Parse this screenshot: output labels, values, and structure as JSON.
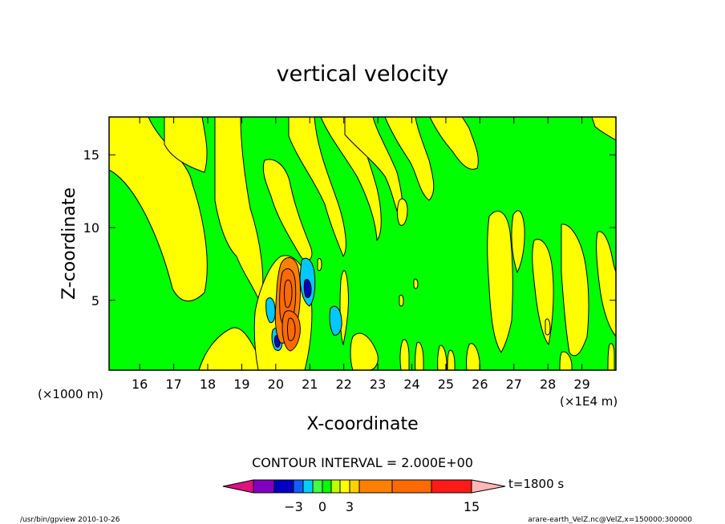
{
  "chart_data": {
    "type": "heatmap",
    "title": "vertical velocity",
    "xlabel": "X-coordinate",
    "ylabel": "Z-coordinate",
    "x_unit_left": "(×1000 m)",
    "x_unit_right": "(×1E4 m)",
    "x_ticks": [
      16,
      17,
      18,
      19,
      20,
      21,
      22,
      23,
      24,
      25,
      26,
      27,
      28,
      29
    ],
    "y_ticks": [
      5,
      10,
      15
    ],
    "xlim": [
      15.1,
      30
    ],
    "ylim": [
      0.2,
      17.6
    ],
    "contour_interval_text": "CONTOUR INTERVAL = 2.000E+00",
    "time_label": "t=1800 s",
    "colorbar": {
      "colors": [
        "#e0107f",
        "#7f00bf",
        "#0000c0",
        "#1060ff",
        "#00d0ff",
        "#40ff40",
        "#00ff00",
        "#c0ff00",
        "#ffff00",
        "#ffd000",
        "#ff8000",
        "#ff6a00",
        "#ff1a1a",
        "#ff7878",
        "#ffb8b8"
      ],
      "labels": [
        {
          "text": "−3",
          "value": -3
        },
        {
          "text": "0",
          "value": 0
        },
        {
          "text": "3",
          "value": 3
        },
        {
          "text": "15",
          "value": 15
        }
      ]
    },
    "field_colors": {
      "green": "#00ff00",
      "yellow": "#ffff00",
      "orange": "#ff6a00",
      "cyan": "#00c8ff",
      "blue": "#0000c0"
    }
  },
  "footer_left": "/usr/bin/gpview   2010-10-26",
  "footer_right": "arare-earth_VelZ.nc@VelZ,x=150000:300000"
}
